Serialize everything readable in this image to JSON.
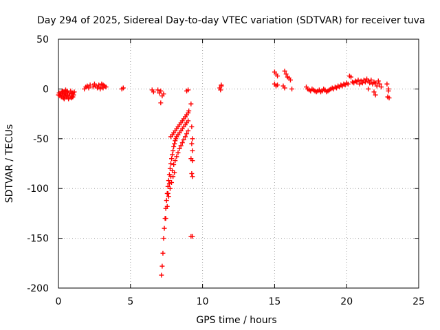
{
  "chart_data": {
    "type": "scatter",
    "title": "Day 294 of 2025, Sidereal Day-to-day VTEC variation (SDTVAR) for receiver tuva",
    "xlabel": "GPS time / hours",
    "ylabel": "SDTVAR / TECUs",
    "xlim": [
      0,
      25
    ],
    "ylim": [
      -200,
      50
    ],
    "xticks": [
      0,
      5,
      10,
      15,
      20,
      25
    ],
    "yticks": [
      50,
      0,
      -50,
      -100,
      -150,
      -200
    ],
    "xtick_labels": [
      "0",
      "5",
      "10",
      "15",
      "20",
      "25"
    ],
    "ytick_labels": [
      "50",
      "0",
      "-50",
      "-100",
      "-150",
      "-200"
    ],
    "grid": true,
    "marker": "+",
    "series": [
      {
        "name": "SDTVAR",
        "color": "#ff0000",
        "points": [
          [
            0.0,
            -6
          ],
          [
            0.05,
            -4
          ],
          [
            0.1,
            -7
          ],
          [
            0.15,
            -5
          ],
          [
            0.2,
            -8
          ],
          [
            0.25,
            -3
          ],
          [
            0.3,
            -6
          ],
          [
            0.35,
            -9
          ],
          [
            0.4,
            -4
          ],
          [
            0.45,
            -7
          ],
          [
            0.5,
            -5
          ],
          [
            0.55,
            -8
          ],
          [
            0.6,
            -3
          ],
          [
            0.65,
            -6
          ],
          [
            0.7,
            -9
          ],
          [
            0.75,
            -4
          ],
          [
            0.8,
            -7
          ],
          [
            0.85,
            -2
          ],
          [
            0.9,
            -5
          ],
          [
            0.95,
            -8
          ],
          [
            1.0,
            -4
          ],
          [
            1.05,
            -6
          ],
          [
            1.1,
            -3
          ],
          [
            0.3,
            -2
          ],
          [
            0.5,
            -1
          ],
          [
            0.7,
            -10
          ],
          [
            0.9,
            -9
          ],
          [
            0.4,
            -10
          ],
          [
            0.6,
            -2
          ],
          [
            1.0,
            -8
          ],
          [
            1.8,
            0
          ],
          [
            1.9,
            2
          ],
          [
            2.0,
            3
          ],
          [
            2.1,
            1
          ],
          [
            2.2,
            4
          ],
          [
            2.4,
            2
          ],
          [
            2.5,
            5
          ],
          [
            2.6,
            3
          ],
          [
            2.7,
            1
          ],
          [
            2.8,
            4
          ],
          [
            2.9,
            2
          ],
          [
            3.0,
            5
          ],
          [
            3.1,
            1
          ],
          [
            3.2,
            3
          ],
          [
            3.3,
            2
          ],
          [
            2.9,
            0
          ],
          [
            3.1,
            4
          ],
          [
            4.4,
            0
          ],
          [
            4.5,
            1
          ],
          [
            6.5,
            -1
          ],
          [
            6.6,
            -3
          ],
          [
            6.9,
            -1
          ],
          [
            7.0,
            -4
          ],
          [
            7.1,
            -2
          ],
          [
            7.2,
            -7
          ],
          [
            7.3,
            -5
          ],
          [
            7.1,
            -14
          ],
          [
            7.15,
            -187
          ],
          [
            7.2,
            -178
          ],
          [
            7.25,
            -165
          ],
          [
            7.3,
            -150
          ],
          [
            7.35,
            -140
          ],
          [
            7.4,
            -130
          ],
          [
            7.45,
            -120
          ],
          [
            7.5,
            -112
          ],
          [
            7.55,
            -105
          ],
          [
            7.6,
            -98
          ],
          [
            7.65,
            -92
          ],
          [
            7.7,
            -86
          ],
          [
            7.75,
            -80
          ],
          [
            7.8,
            -75
          ],
          [
            7.85,
            -70
          ],
          [
            7.9,
            -66
          ],
          [
            7.95,
            -62
          ],
          [
            8.0,
            -58
          ],
          [
            8.05,
            -55
          ],
          [
            8.1,
            -52
          ],
          [
            8.15,
            -50
          ],
          [
            8.2,
            -48
          ],
          [
            8.3,
            -46
          ],
          [
            8.4,
            -44
          ],
          [
            8.5,
            -42
          ],
          [
            8.6,
            -40
          ],
          [
            8.7,
            -38
          ],
          [
            8.8,
            -36
          ],
          [
            8.9,
            -34
          ],
          [
            9.0,
            -32
          ],
          [
            7.8,
            -48
          ],
          [
            7.9,
            -46
          ],
          [
            8.0,
            -44
          ],
          [
            8.1,
            -42
          ],
          [
            8.2,
            -40
          ],
          [
            8.3,
            -38
          ],
          [
            8.4,
            -36
          ],
          [
            8.5,
            -34
          ],
          [
            8.6,
            -32
          ],
          [
            8.7,
            -30
          ],
          [
            8.8,
            -28
          ],
          [
            8.9,
            -26
          ],
          [
            9.0,
            -24
          ],
          [
            9.05,
            -22
          ],
          [
            7.6,
            -105
          ],
          [
            7.7,
            -95
          ],
          [
            7.8,
            -88
          ],
          [
            7.9,
            -82
          ],
          [
            8.0,
            -76
          ],
          [
            8.1,
            -72
          ],
          [
            8.2,
            -68
          ],
          [
            8.3,
            -64
          ],
          [
            8.4,
            -60
          ],
          [
            8.5,
            -57
          ],
          [
            8.6,
            -54
          ],
          [
            8.7,
            -51
          ],
          [
            8.8,
            -48
          ],
          [
            8.9,
            -45
          ],
          [
            9.0,
            -42
          ],
          [
            7.45,
            -130
          ],
          [
            7.55,
            -118
          ],
          [
            7.65,
            -108
          ],
          [
            7.75,
            -100
          ],
          [
            7.85,
            -94
          ],
          [
            7.95,
            -88
          ],
          [
            8.05,
            -84
          ],
          [
            8.9,
            -2
          ],
          [
            9.0,
            -1
          ],
          [
            9.2,
            -15
          ],
          [
            9.25,
            -38
          ],
          [
            9.3,
            -50
          ],
          [
            9.25,
            -55
          ],
          [
            9.3,
            -62
          ],
          [
            9.2,
            -70
          ],
          [
            9.3,
            -72
          ],
          [
            9.25,
            -85
          ],
          [
            9.3,
            -88
          ],
          [
            9.2,
            -148
          ],
          [
            9.3,
            -148
          ],
          [
            11.2,
            1
          ],
          [
            11.3,
            3
          ],
          [
            11.25,
            -1
          ],
          [
            11.3,
            4
          ],
          [
            15.0,
            17
          ],
          [
            15.1,
            15
          ],
          [
            15.2,
            13
          ],
          [
            15.0,
            5
          ],
          [
            15.1,
            3
          ],
          [
            15.2,
            4
          ],
          [
            15.7,
            18
          ],
          [
            15.8,
            15
          ],
          [
            15.9,
            12
          ],
          [
            16.0,
            11
          ],
          [
            16.1,
            9
          ],
          [
            15.6,
            3
          ],
          [
            15.7,
            1
          ],
          [
            16.2,
            0
          ],
          [
            17.2,
            2
          ],
          [
            17.3,
            0
          ],
          [
            17.4,
            -1
          ],
          [
            17.5,
            -2
          ],
          [
            17.6,
            0
          ],
          [
            17.7,
            -1
          ],
          [
            17.8,
            -2
          ],
          [
            17.9,
            -3
          ],
          [
            18.0,
            -2
          ],
          [
            18.1,
            -1
          ],
          [
            18.2,
            -3
          ],
          [
            18.3,
            -2
          ],
          [
            18.4,
            0
          ],
          [
            18.5,
            -1
          ],
          [
            18.6,
            -3
          ],
          [
            18.7,
            -2
          ],
          [
            18.8,
            -1
          ],
          [
            18.9,
            0
          ],
          [
            19.0,
            1
          ],
          [
            19.1,
            0
          ],
          [
            19.2,
            2
          ],
          [
            19.3,
            1
          ],
          [
            19.4,
            3
          ],
          [
            19.5,
            2
          ],
          [
            19.6,
            4
          ],
          [
            19.7,
            3
          ],
          [
            19.8,
            5
          ],
          [
            19.9,
            4
          ],
          [
            20.0,
            6
          ],
          [
            20.1,
            5
          ],
          [
            20.2,
            13
          ],
          [
            20.3,
            12
          ],
          [
            20.4,
            7
          ],
          [
            20.5,
            6
          ],
          [
            20.6,
            8
          ],
          [
            20.7,
            7
          ],
          [
            20.8,
            9
          ],
          [
            20.9,
            5
          ],
          [
            21.0,
            8
          ],
          [
            21.1,
            6
          ],
          [
            21.2,
            9
          ],
          [
            21.3,
            7
          ],
          [
            21.4,
            10
          ],
          [
            21.5,
            8
          ],
          [
            21.6,
            6
          ],
          [
            21.7,
            9
          ],
          [
            21.8,
            5
          ],
          [
            21.9,
            7
          ],
          [
            22.0,
            6
          ],
          [
            22.1,
            3
          ],
          [
            22.2,
            8
          ],
          [
            22.3,
            5
          ],
          [
            22.4,
            2
          ],
          [
            21.5,
            0
          ],
          [
            21.9,
            -3
          ],
          [
            22.0,
            -6
          ],
          [
            22.8,
            5
          ],
          [
            22.9,
            0
          ],
          [
            22.85,
            -8
          ],
          [
            22.95,
            -9
          ],
          [
            22.9,
            -2
          ]
        ]
      }
    ]
  }
}
